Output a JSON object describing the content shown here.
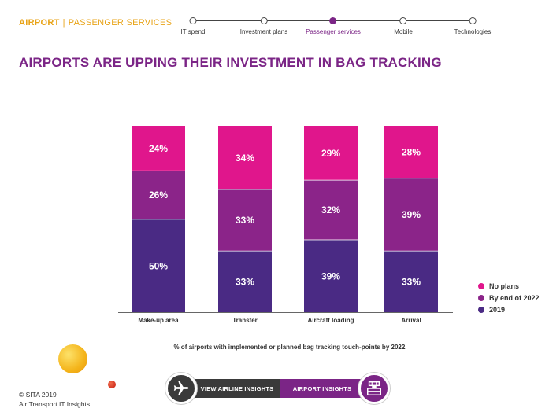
{
  "header": {
    "section_primary": "AIRPORT",
    "section_separator": "|",
    "section_secondary": "PASSENGER SERVICES"
  },
  "progress": {
    "steps": [
      {
        "label": "IT spend",
        "active": false
      },
      {
        "label": "Investment plans",
        "active": false
      },
      {
        "label": "Passenger services",
        "active": true
      },
      {
        "label": "Mobile",
        "active": false
      },
      {
        "label": "Technologies",
        "active": false
      }
    ]
  },
  "title": "AIRPORTS ARE UPPING THEIR INVESTMENT IN BAG TRACKING",
  "chart_data": {
    "type": "bar",
    "stacked": true,
    "categories": [
      "Make-up area",
      "Transfer",
      "Aircraft loading",
      "Arrival"
    ],
    "series": [
      {
        "name": "2019",
        "color": "#4a2a84",
        "values": [
          50,
          33,
          39,
          33
        ]
      },
      {
        "name": "By end of 2022",
        "color": "#8b2489",
        "values": [
          26,
          33,
          32,
          39
        ]
      },
      {
        "name": "No plans",
        "color": "#e0168c",
        "values": [
          24,
          34,
          29,
          28
        ]
      }
    ],
    "value_labels": [
      [
        "50%",
        "33%",
        "39%",
        "33%"
      ],
      [
        "26%",
        "33%",
        "32%",
        "39%"
      ],
      [
        "24%",
        "34%",
        "29%",
        "28%"
      ]
    ],
    "ylim": [
      0,
      100
    ],
    "legend_position": "bottom-right",
    "grid": false,
    "caption": "% of airports with implemented or planned bag tracking touch-points by 2022."
  },
  "legend": {
    "items": [
      {
        "label": "No plans",
        "color": "#e0168c"
      },
      {
        "label": "By end of 2022",
        "color": "#8b2489"
      },
      {
        "label": "2019",
        "color": "#4a2a84"
      }
    ]
  },
  "footer": {
    "copyright": "© SITA 2019",
    "publication": "Air Transport IT Insights",
    "airline_button": "VIEW AIRLINE INSIGHTS",
    "airport_button": "AIRPORT INSIGHTS",
    "left_icon": "airplane-icon",
    "right_icon": "control-tower-icon"
  }
}
